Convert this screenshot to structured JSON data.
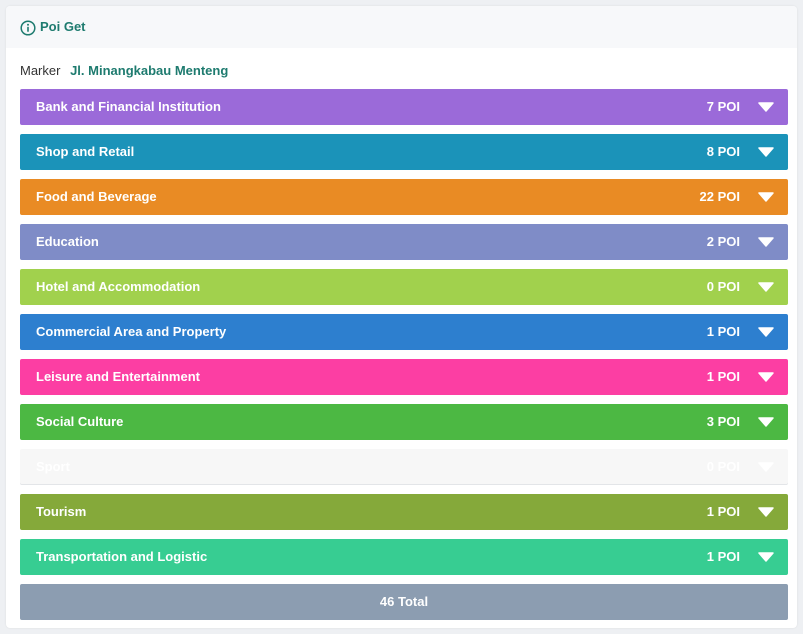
{
  "header": {
    "title": "Poi Get",
    "icon": "info-circle-icon",
    "color": "#1e7b6f"
  },
  "marker": {
    "label": "Marker",
    "value": "Jl. Minangkabau Menteng"
  },
  "categories": [
    {
      "name": "Bank and Financial Institution",
      "count": "7 POI",
      "color": "#9b6ad9",
      "text_color": "#ffffff"
    },
    {
      "name": "Shop and Retail",
      "count": "8 POI",
      "color": "#1b93b9",
      "text_color": "#ffffff"
    },
    {
      "name": "Food and Beverage",
      "count": "22 POI",
      "color": "#e98b24",
      "text_color": "#ffffff"
    },
    {
      "name": "Education",
      "count": "2 POI",
      "color": "#7f8cc7",
      "text_color": "#ffffff"
    },
    {
      "name": "Hotel and Accommodation",
      "count": "0 POI",
      "color": "#a1d14d",
      "text_color": "#ffffff"
    },
    {
      "name": "Commercial Area and Property",
      "count": "1 POI",
      "color": "#2d7fcf",
      "text_color": "#ffffff"
    },
    {
      "name": "Leisure and Entertainment",
      "count": "1 POI",
      "color": "#fc3ea3",
      "text_color": "#ffffff"
    },
    {
      "name": "Social Culture",
      "count": "3 POI",
      "color": "#4cb843",
      "text_color": "#ffffff"
    },
    {
      "name": "Sport",
      "count": "0 POI",
      "color": "#f7f7f7",
      "text_color": "#ffffff"
    },
    {
      "name": "Tourism",
      "count": "1 POI",
      "color": "#85a93a",
      "text_color": "#ffffff"
    },
    {
      "name": "Transportation and Logistic",
      "count": "1 POI",
      "color": "#37cd92",
      "text_color": "#ffffff"
    }
  ],
  "total": {
    "label": "46 Total",
    "color": "#8c9db1"
  },
  "icons": {
    "expand": "chevron-down-icon"
  }
}
